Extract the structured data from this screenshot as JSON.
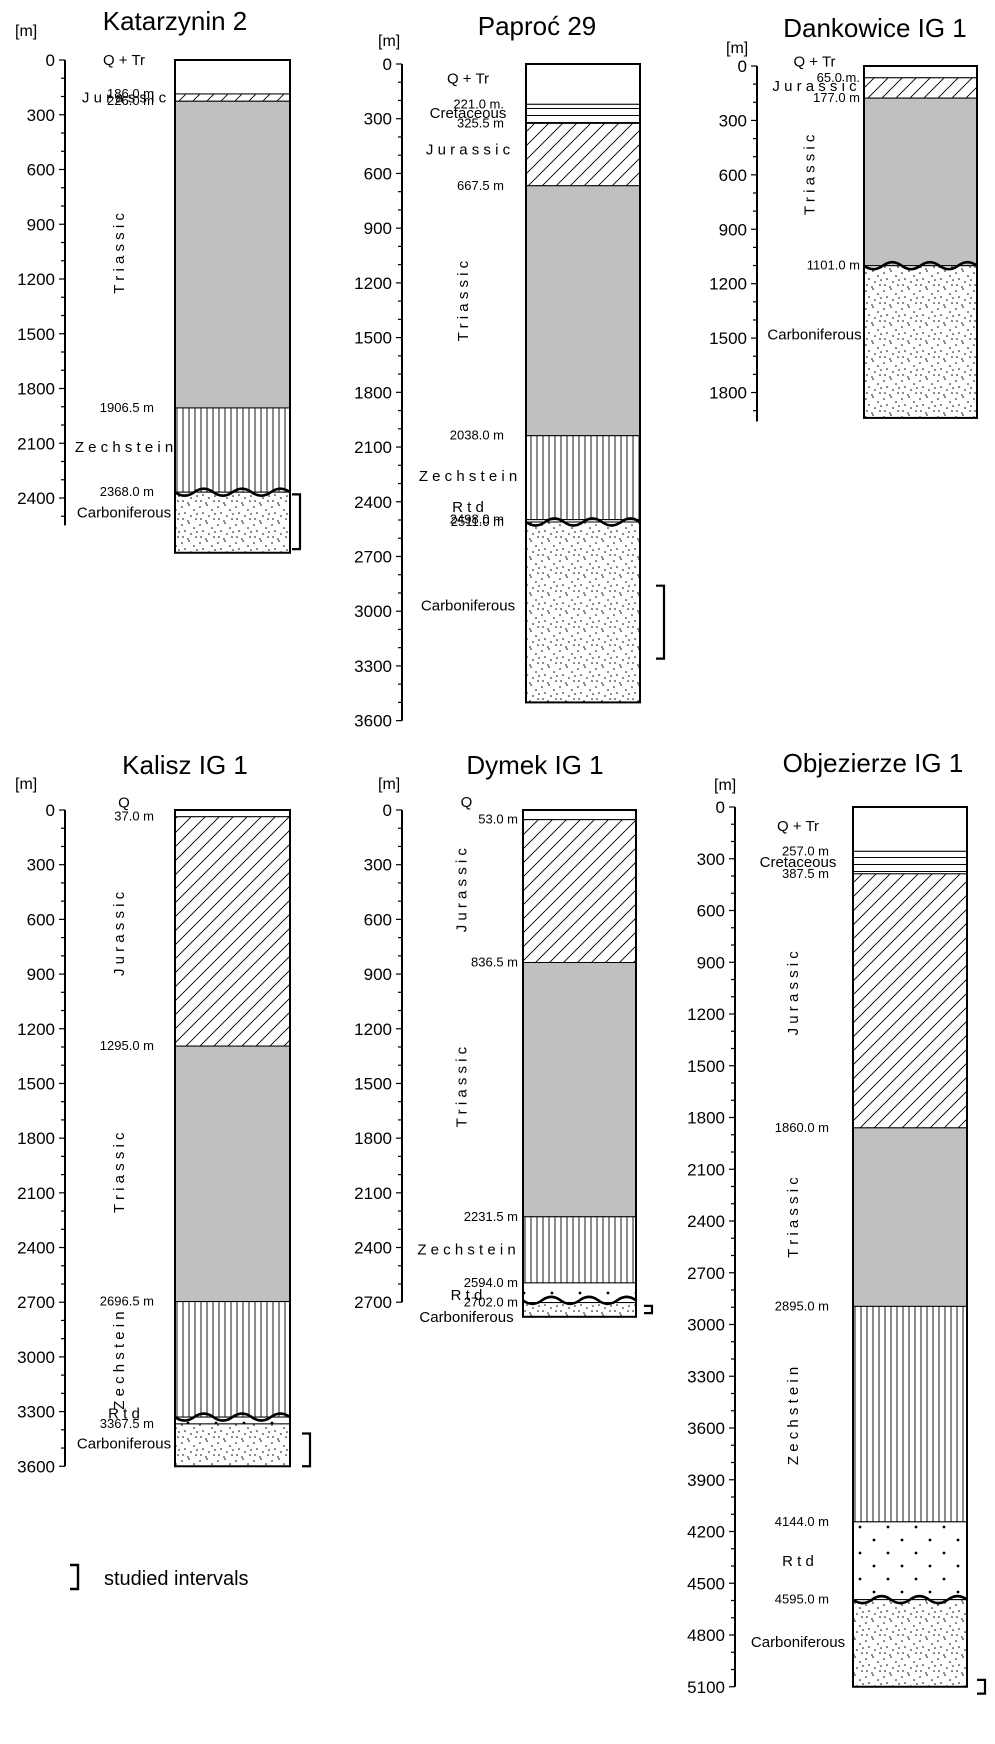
{
  "diagram": {
    "columns": [
      {
        "id": "katarzynin-2",
        "title": "Katarzynin 2",
        "axis": {
          "unit": "[m]",
          "ticks": [
            "0",
            "300",
            "600",
            "900",
            "1200",
            "1500",
            "1800",
            "2100",
            "2400"
          ],
          "tick_values": [
            0,
            300,
            600,
            900,
            1200,
            1500,
            1800,
            2100,
            2400
          ],
          "max": 2550
        },
        "layers": [
          {
            "name": "Q + Tr",
            "top": 0,
            "bottom": 186,
            "pattern": "blank"
          },
          {
            "name": "Jurassic",
            "top": 186,
            "bottom": 226,
            "pattern": "diagonal"
          },
          {
            "name": "Triassic",
            "top": 226,
            "bottom": 1906.5,
            "pattern": "grey"
          },
          {
            "name": "Zechstein",
            "top": 1906.5,
            "bottom": 2368,
            "pattern": "vertical"
          },
          {
            "name": "Carboniferous",
            "top": 2368,
            "bottom": 2700,
            "pattern": "stipple"
          }
        ],
        "depth_labels": [
          "186.0 m",
          "226.0 m",
          "1906.5 m",
          "2368.0 m"
        ],
        "depth_values": [
          186,
          226,
          1906.5,
          2368
        ],
        "unit_labels": [
          {
            "text": "Q + Tr",
            "at": 0,
            "vertical": false
          },
          {
            "text": "J u r a s s i c",
            "at": 206,
            "vertical": false
          },
          {
            "text": "T r i a s s i c",
            "at": 1060,
            "vertical": true
          },
          {
            "text": "Z e c h s t e i n",
            "at": 2120,
            "vertical": false
          },
          {
            "text": "Carboniferous",
            "at": 2480,
            "vertical": false
          }
        ],
        "unconformity_at": 2368,
        "studied_interval": [
          2380,
          2680
        ]
      },
      {
        "id": "paproc-29",
        "title": "Paproć 29",
        "axis": {
          "unit": "[m]",
          "ticks": [
            "0",
            "300",
            "600",
            "900",
            "1200",
            "1500",
            "1800",
            "2100",
            "2400",
            "2700",
            "3000",
            "3300",
            "3600"
          ],
          "tick_values": [
            0,
            300,
            600,
            900,
            1200,
            1500,
            1800,
            2100,
            2400,
            2700,
            3000,
            3300,
            3600
          ],
          "max": 3600
        },
        "layers": [
          {
            "name": "Q + Tr",
            "top": 0,
            "bottom": 221,
            "pattern": "blank"
          },
          {
            "name": "Cretaceous",
            "top": 221,
            "bottom": 325.5,
            "pattern": "horizontal"
          },
          {
            "name": "Jurassic",
            "top": 325.5,
            "bottom": 667.5,
            "pattern": "diagonal"
          },
          {
            "name": "Triassic",
            "top": 667.5,
            "bottom": 2038,
            "pattern": "grey"
          },
          {
            "name": "Zechstein",
            "top": 2038,
            "bottom": 2498,
            "pattern": "vertical"
          },
          {
            "name": "Rtd",
            "top": 2498,
            "bottom": 2511,
            "pattern": "dots"
          },
          {
            "name": "Carboniferous",
            "top": 2511,
            "bottom": 3500,
            "pattern": "stipple"
          }
        ],
        "depth_labels": [
          "221.0 m.",
          "325.5 m",
          "667.5 m",
          "2038.0 m",
          "2498.0 m",
          "2511.0 m"
        ],
        "depth_values": [
          221,
          325.5,
          667.5,
          2038,
          2498,
          2511
        ],
        "unit_labels": [
          {
            "text": "Q + Tr",
            "at": 80,
            "vertical": false
          },
          {
            "text": "Cretaceous",
            "at": 270,
            "vertical": false
          },
          {
            "text": "J u r a s s i c",
            "at": 470,
            "vertical": false
          },
          {
            "text": "T r i a s s i c",
            "at": 1300,
            "vertical": true
          },
          {
            "text": "Z e c h s t e i n",
            "at": 2260,
            "vertical": false
          },
          {
            "text": "R t d",
            "at": 2430,
            "vertical": false
          },
          {
            "text": "Carboniferous",
            "at": 2970,
            "vertical": false
          }
        ],
        "unconformity_at": 2511,
        "studied_interval": [
          2860,
          3260
        ]
      },
      {
        "id": "dankowice-ig-1",
        "title": "Dankowice IG 1",
        "axis": {
          "unit": "[m]",
          "ticks": [
            "0",
            "300",
            "600",
            "900",
            "1200",
            "1500",
            "1800"
          ],
          "tick_values": [
            0,
            300,
            600,
            900,
            1200,
            1500,
            1800
          ],
          "max": 1960
        },
        "layers": [
          {
            "name": "Q + Tr",
            "top": 0,
            "bottom": 65,
            "pattern": "blank"
          },
          {
            "name": "Jurassic",
            "top": 65,
            "bottom": 177,
            "pattern": "diagonal"
          },
          {
            "name": "Triassic",
            "top": 177,
            "bottom": 1101,
            "pattern": "grey"
          },
          {
            "name": "Carboniferous",
            "top": 1101,
            "bottom": 1940,
            "pattern": "stipple"
          }
        ],
        "depth_labels": [
          "65.0 m.",
          "177.0 m",
          "1101.0 m"
        ],
        "depth_values": [
          65,
          177,
          1101
        ],
        "unit_labels": [
          {
            "text": "Q + Tr",
            "at": -25,
            "vertical": false
          },
          {
            "text": "J u r a s s i c",
            "at": 110,
            "vertical": false
          },
          {
            "text": "T r i a s s i c",
            "at": 600,
            "vertical": true
          },
          {
            "text": "Carboniferous",
            "at": 1480,
            "vertical": false
          }
        ],
        "unconformity_at": 1101,
        "studied_interval": null
      },
      {
        "id": "kalisz-ig-1",
        "title": "Kalisz IG 1",
        "axis": {
          "unit": "[m]",
          "ticks": [
            "0",
            "300",
            "600",
            "900",
            "1200",
            "1500",
            "1800",
            "2100",
            "2400",
            "2700",
            "3000",
            "3300",
            "3600"
          ],
          "tick_values": [
            0,
            300,
            600,
            900,
            1200,
            1500,
            1800,
            2100,
            2400,
            2700,
            3000,
            3300,
            3600
          ],
          "max": 3600
        },
        "layers": [
          {
            "name": "Q",
            "top": 0,
            "bottom": 37,
            "pattern": "blank"
          },
          {
            "name": "Jurassic",
            "top": 37,
            "bottom": 1295,
            "pattern": "diagonal"
          },
          {
            "name": "Triassic",
            "top": 1295,
            "bottom": 2696.5,
            "pattern": "grey"
          },
          {
            "name": "Zechstein",
            "top": 2696.5,
            "bottom": 3330,
            "pattern": "vertical"
          },
          {
            "name": "Rtd",
            "top": 3330,
            "bottom": 3367.5,
            "pattern": "dots"
          },
          {
            "name": "Carboniferous",
            "top": 3367.5,
            "bottom": 3600,
            "pattern": "stipple"
          }
        ],
        "depth_labels": [
          "37.0 m",
          "1295.0 m",
          "2696.5 m",
          "3367.5 m"
        ],
        "depth_values": [
          37,
          1295,
          2696.5,
          3367.5
        ],
        "unit_labels": [
          {
            "text": "Q",
            "at": -40,
            "vertical": false
          },
          {
            "text": "J u r a s s i c",
            "at": 680,
            "vertical": true
          },
          {
            "text": "T r i a s s i c",
            "at": 1990,
            "vertical": true
          },
          {
            "text": "Z e c h s t e i n",
            "at": 3020,
            "vertical": true
          },
          {
            "text": "R t d",
            "at": 3310,
            "vertical": false
          },
          {
            "text": "Carboniferous",
            "at": 3475,
            "vertical": false
          }
        ],
        "unconformity_at": 3330,
        "studied_interval": [
          3420,
          3600
        ]
      },
      {
        "id": "dymek-ig-1",
        "title": "Dymek IG 1",
        "axis": {
          "unit": "[m]",
          "ticks": [
            "0",
            "300",
            "600",
            "900",
            "1200",
            "1500",
            "1800",
            "2100",
            "2400",
            "2700"
          ],
          "tick_values": [
            0,
            300,
            600,
            900,
            1200,
            1500,
            1800,
            2100,
            2400,
            2700
          ],
          "max": 2700
        },
        "layers": [
          {
            "name": "Q",
            "top": 0,
            "bottom": 53,
            "pattern": "blank"
          },
          {
            "name": "Jurassic",
            "top": 53,
            "bottom": 836.5,
            "pattern": "diagonal"
          },
          {
            "name": "Triassic",
            "top": 836.5,
            "bottom": 2231.5,
            "pattern": "grey"
          },
          {
            "name": "Zechstein",
            "top": 2231.5,
            "bottom": 2594,
            "pattern": "vertical"
          },
          {
            "name": "Rtd",
            "top": 2594,
            "bottom": 2702,
            "pattern": "dots"
          },
          {
            "name": "Carboniferous",
            "top": 2702,
            "bottom": 2780,
            "pattern": "stipple"
          }
        ],
        "depth_labels": [
          "53.0 m",
          "836.5 m",
          "2231.5 m",
          "2594.0 m",
          "2702.0 m"
        ],
        "depth_values": [
          53,
          836.5,
          2231.5,
          2594,
          2702
        ],
        "unit_labels": [
          {
            "text": "Q",
            "at": -45,
            "vertical": false
          },
          {
            "text": "J u r a s s i c",
            "at": 440,
            "vertical": true
          },
          {
            "text": "T r i a s s i c",
            "at": 1520,
            "vertical": true
          },
          {
            "text": "Z e c h s t e i n",
            "at": 2410,
            "vertical": false
          },
          {
            "text": "R t d",
            "at": 2660,
            "vertical": false
          },
          {
            "text": "Carboniferous",
            "at": 2780,
            "vertical": false
          }
        ],
        "unconformity_at": 2690,
        "studied_interval": [
          2720,
          2760
        ]
      },
      {
        "id": "objezierze-ig-1",
        "title": "Objezierze IG 1",
        "axis": {
          "unit": "[m]",
          "ticks": [
            "0",
            "300",
            "600",
            "900",
            "1200",
            "1500",
            "1800",
            "2100",
            "2400",
            "2700",
            "3000",
            "3300",
            "3600",
            "3900",
            "4200",
            "4500",
            "4800",
            "5100"
          ],
          "tick_values": [
            0,
            300,
            600,
            900,
            1200,
            1500,
            1800,
            2100,
            2400,
            2700,
            3000,
            3300,
            3600,
            3900,
            4200,
            4500,
            4800,
            5100
          ],
          "max": 5100
        },
        "layers": [
          {
            "name": "Q + Tr",
            "top": 0,
            "bottom": 257,
            "pattern": "blank"
          },
          {
            "name": "Cretaceous",
            "top": 257,
            "bottom": 387.5,
            "pattern": "horizontal"
          },
          {
            "name": "Jurassic",
            "top": 387.5,
            "bottom": 1860,
            "pattern": "diagonal"
          },
          {
            "name": "Triassic",
            "top": 1860,
            "bottom": 2895,
            "pattern": "grey"
          },
          {
            "name": "Zechstein",
            "top": 2895,
            "bottom": 4144,
            "pattern": "vertical"
          },
          {
            "name": "Rtd",
            "top": 4144,
            "bottom": 4595,
            "pattern": "dots"
          },
          {
            "name": "Carboniferous",
            "top": 4595,
            "bottom": 5100,
            "pattern": "stipple"
          }
        ],
        "depth_labels": [
          "257.0 m",
          "387.5 m",
          "1860.0 m",
          "2895.0 m",
          "4144.0 m",
          "4595.0 m"
        ],
        "depth_values": [
          257,
          387.5,
          1860,
          2895,
          4144,
          4595
        ],
        "unit_labels": [
          {
            "text": "Q + Tr",
            "at": 110,
            "vertical": false
          },
          {
            "text": "Cretaceous",
            "at": 320,
            "vertical": false
          },
          {
            "text": "J u r a s s i c",
            "at": 1080,
            "vertical": true
          },
          {
            "text": "T r i a s s i c",
            "at": 2380,
            "vertical": true
          },
          {
            "text": "Z e c h s t e i n",
            "at": 3530,
            "vertical": true
          },
          {
            "text": "R t d",
            "at": 4370,
            "vertical": false
          },
          {
            "text": "Carboniferous",
            "at": 4840,
            "vertical": false
          }
        ],
        "unconformity_at": 4595,
        "studied_interval": [
          5060,
          5140
        ]
      }
    ],
    "legend": {
      "symbol": "]",
      "text": "studied intervals"
    },
    "colors": {
      "triassic_fill": "#c0c0c0",
      "line": "#000000",
      "background": "#ffffff"
    }
  }
}
